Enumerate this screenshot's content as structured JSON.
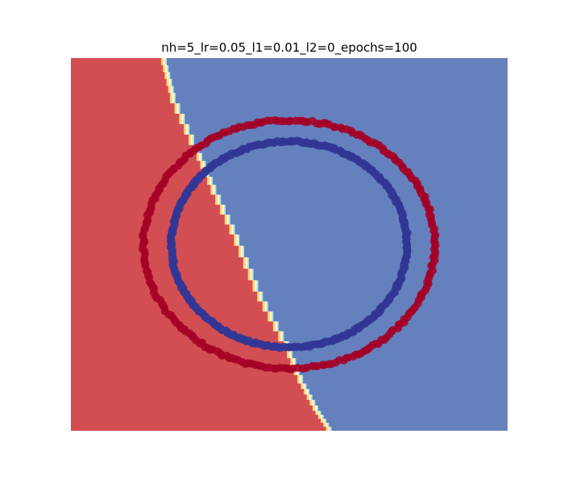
{
  "chart_data": {
    "type": "scatter",
    "title": "nh=5_lr=0.05_l1=0.01_l2=0_epochs=100",
    "xlabel": "",
    "ylabel": "",
    "xlim": [
      -1.5,
      1.5
    ],
    "ylim": [
      -1.5,
      1.5
    ],
    "grid": false,
    "axes_visible": false,
    "background": {
      "type": "decision-regions",
      "colors": {
        "class_0": "#d34e52",
        "class_1": "#6581bd",
        "boundary_band": [
          "#fdd587",
          "#fffebe",
          "#b3e0ed"
        ]
      },
      "boundary": [
        [
          -0.88,
          1.5
        ],
        [
          -0.82,
          1.22
        ],
        [
          -0.66,
          0.8
        ],
        [
          -0.54,
          0.48
        ],
        [
          -0.38,
          0.08
        ],
        [
          -0.22,
          -0.38
        ],
        [
          -0.04,
          -0.78
        ],
        [
          0.08,
          -1.12
        ],
        [
          0.18,
          -1.34
        ],
        [
          0.27,
          -1.5
        ]
      ]
    },
    "series": [
      {
        "label_class": 0,
        "color": "#a50026",
        "shape": "circle",
        "center": [
          0.0,
          0.0
        ],
        "radius_x": 1.0,
        "radius_y": 1.0,
        "n_points": 260
      },
      {
        "label_class": 1,
        "color": "#313695",
        "shape": "circle",
        "center": [
          0.0,
          0.0
        ],
        "radius_x": 0.81,
        "radius_y": 0.83,
        "n_points": 340
      }
    ]
  }
}
